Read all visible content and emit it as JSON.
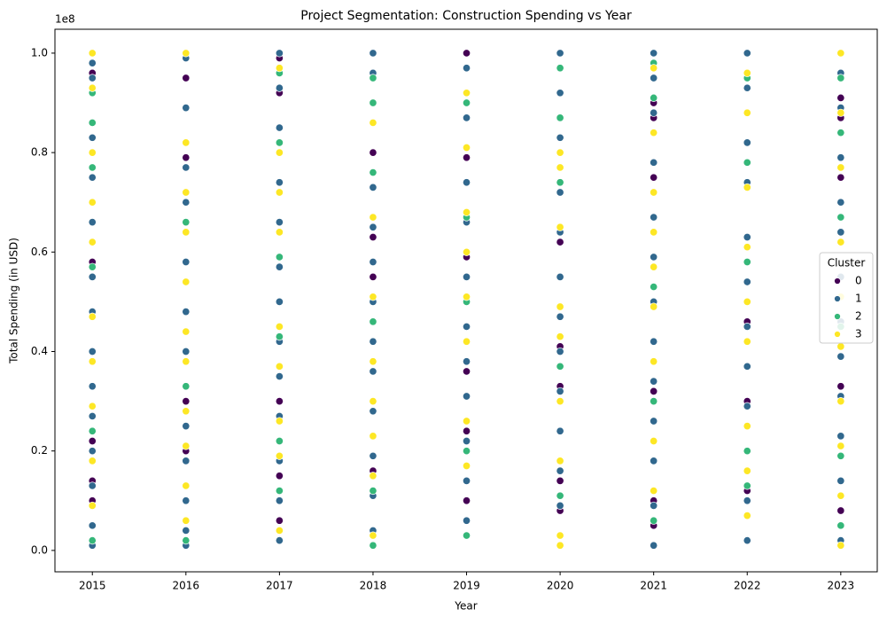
{
  "chart_data": {
    "type": "scatter",
    "title": "Project Segmentation: Construction Spending vs Year",
    "x_label": "Year",
    "y_label": "Total Spending (in USD)",
    "y_offset_label": "1e8",
    "xlim": [
      2014.6,
      2023.39
    ],
    "ylim": [
      -0.043,
      1.048
    ],
    "xticks": [
      2015,
      2016,
      2017,
      2018,
      2019,
      2020,
      2021,
      2022,
      2023
    ],
    "yticks": [
      {
        "value": 0,
        "label": "0.0"
      },
      {
        "value": 0.2,
        "label": "0.2"
      },
      {
        "value": 0.4,
        "label": "0.4"
      },
      {
        "value": 0.6,
        "label": "0.6"
      },
      {
        "value": 0.8,
        "label": "0.8"
      },
      {
        "value": 1,
        "label": "1.0"
      }
    ],
    "grid": false,
    "legend_title": "Cluster",
    "legend_position": "right",
    "series": [
      {
        "name": "0",
        "color": "#440154",
        "x": [
          2015,
          2015,
          2015,
          2015,
          2015,
          2016,
          2016,
          2016,
          2016,
          2016,
          2017,
          2017,
          2017,
          2017,
          2017,
          2018,
          2018,
          2018,
          2018,
          2019,
          2019,
          2019,
          2019,
          2019,
          2019,
          2020,
          2020,
          2020,
          2020,
          2020,
          2021,
          2021,
          2021,
          2021,
          2021,
          2021,
          2022,
          2022,
          2022,
          2022,
          2023,
          2023,
          2023,
          2023,
          2023
        ],
        "values": [
          0.96,
          0.58,
          0.22,
          0.14,
          0.1,
          0.95,
          0.79,
          0.54,
          0.3,
          0.2,
          0.99,
          0.92,
          0.3,
          0.15,
          0.06,
          0.8,
          0.63,
          0.55,
          0.16,
          1.0,
          0.79,
          0.59,
          0.36,
          0.24,
          0.1,
          0.62,
          0.41,
          0.33,
          0.14,
          0.08,
          0.9,
          0.87,
          0.75,
          0.32,
          0.1,
          0.05,
          0.46,
          0.37,
          0.3,
          0.12,
          0.91,
          0.87,
          0.75,
          0.33,
          0.08
        ]
      },
      {
        "name": "1",
        "color": "#31688e",
        "x": [
          2015,
          2015,
          2015,
          2015,
          2015,
          2015,
          2015,
          2015,
          2015,
          2015,
          2015,
          2015,
          2015,
          2015,
          2016,
          2016,
          2016,
          2016,
          2016,
          2016,
          2016,
          2016,
          2016,
          2016,
          2016,
          2016,
          2016,
          2017,
          2017,
          2017,
          2017,
          2017,
          2017,
          2017,
          2017,
          2017,
          2017,
          2017,
          2017,
          2017,
          2018,
          2018,
          2018,
          2018,
          2018,
          2018,
          2018,
          2018,
          2018,
          2018,
          2018,
          2018,
          2018,
          2019,
          2019,
          2019,
          2019,
          2019,
          2019,
          2019,
          2019,
          2019,
          2019,
          2019,
          2020,
          2020,
          2020,
          2020,
          2020,
          2020,
          2020,
          2020,
          2020,
          2020,
          2020,
          2020,
          2021,
          2021,
          2021,
          2021,
          2021,
          2021,
          2021,
          2021,
          2021,
          2021,
          2021,
          2021,
          2021,
          2022,
          2022,
          2022,
          2022,
          2022,
          2022,
          2022,
          2022,
          2022,
          2022,
          2022,
          2022,
          2023,
          2023,
          2023,
          2023,
          2023,
          2023,
          2023,
          2023,
          2023,
          2023,
          2023,
          2023,
          2023
        ],
        "values": [
          0.98,
          0.95,
          0.83,
          0.75,
          0.66,
          0.55,
          0.48,
          0.4,
          0.33,
          0.27,
          0.2,
          0.13,
          0.05,
          0.01,
          0.99,
          0.89,
          0.77,
          0.7,
          0.58,
          0.48,
          0.4,
          0.33,
          0.25,
          0.18,
          0.1,
          0.04,
          0.01,
          1.0,
          0.93,
          0.85,
          0.74,
          0.66,
          0.57,
          0.5,
          0.42,
          0.35,
          0.27,
          0.18,
          0.1,
          0.02,
          1.0,
          0.96,
          0.86,
          0.73,
          0.65,
          0.58,
          0.5,
          0.42,
          0.36,
          0.28,
          0.19,
          0.11,
          0.04,
          0.97,
          0.87,
          0.74,
          0.66,
          0.55,
          0.45,
          0.38,
          0.31,
          0.22,
          0.14,
          0.06,
          1.0,
          0.92,
          0.83,
          0.72,
          0.64,
          0.55,
          0.47,
          0.4,
          0.32,
          0.24,
          0.16,
          0.09,
          1.0,
          0.95,
          0.88,
          0.78,
          0.67,
          0.59,
          0.5,
          0.42,
          0.34,
          0.26,
          0.18,
          0.09,
          0.01,
          1.0,
          0.93,
          0.82,
          0.74,
          0.63,
          0.54,
          0.45,
          0.37,
          0.29,
          0.2,
          0.1,
          0.02,
          0.96,
          0.89,
          0.79,
          0.7,
          0.64,
          0.55,
          0.46,
          0.39,
          0.31,
          0.23,
          0.14,
          0.05,
          0.02
        ]
      },
      {
        "name": "2",
        "color": "#35b779",
        "x": [
          2015,
          2015,
          2015,
          2015,
          2015,
          2015,
          2016,
          2016,
          2016,
          2016,
          2017,
          2017,
          2017,
          2017,
          2017,
          2017,
          2018,
          2018,
          2018,
          2018,
          2018,
          2018,
          2019,
          2019,
          2019,
          2019,
          2019,
          2020,
          2020,
          2020,
          2020,
          2020,
          2021,
          2021,
          2021,
          2021,
          2021,
          2022,
          2022,
          2022,
          2022,
          2022,
          2023,
          2023,
          2023,
          2023,
          2023,
          2023
        ],
        "values": [
          0.92,
          0.86,
          0.77,
          0.57,
          0.24,
          0.02,
          0.66,
          0.33,
          0.13,
          0.02,
          0.96,
          0.82,
          0.59,
          0.43,
          0.22,
          0.12,
          0.95,
          0.9,
          0.76,
          0.46,
          0.12,
          0.01,
          0.9,
          0.67,
          0.5,
          0.2,
          0.03,
          0.97,
          0.87,
          0.74,
          0.37,
          0.11,
          0.98,
          0.91,
          0.53,
          0.3,
          0.06,
          0.95,
          0.78,
          0.58,
          0.2,
          0.13,
          0.95,
          0.84,
          0.67,
          0.45,
          0.19,
          0.05
        ]
      },
      {
        "name": "3",
        "color": "#fde725",
        "x": [
          2015,
          2015,
          2015,
          2015,
          2015,
          2015,
          2015,
          2015,
          2015,
          2015,
          2016,
          2016,
          2016,
          2016,
          2016,
          2016,
          2016,
          2016,
          2016,
          2016,
          2016,
          2017,
          2017,
          2017,
          2017,
          2017,
          2017,
          2017,
          2017,
          2017,
          2018,
          2018,
          2018,
          2018,
          2018,
          2018,
          2018,
          2018,
          2019,
          2019,
          2019,
          2019,
          2019,
          2019,
          2019,
          2019,
          2020,
          2020,
          2020,
          2020,
          2020,
          2020,
          2020,
          2020,
          2020,
          2021,
          2021,
          2021,
          2021,
          2021,
          2021,
          2021,
          2021,
          2021,
          2022,
          2022,
          2022,
          2022,
          2022,
          2022,
          2022,
          2022,
          2022,
          2023,
          2023,
          2023,
          2023,
          2023,
          2023,
          2023,
          2023,
          2023,
          2023
        ],
        "values": [
          1.0,
          0.93,
          0.8,
          0.7,
          0.62,
          0.47,
          0.38,
          0.29,
          0.18,
          0.09,
          1.0,
          0.82,
          0.72,
          0.64,
          0.54,
          0.44,
          0.38,
          0.28,
          0.21,
          0.13,
          0.06,
          0.97,
          0.8,
          0.72,
          0.64,
          0.45,
          0.37,
          0.26,
          0.19,
          0.04,
          0.86,
          0.67,
          0.51,
          0.38,
          0.3,
          0.23,
          0.15,
          0.03,
          0.92,
          0.81,
          0.68,
          0.6,
          0.51,
          0.42,
          0.26,
          0.17,
          0.8,
          0.77,
          0.65,
          0.49,
          0.43,
          0.3,
          0.18,
          0.03,
          0.01,
          0.97,
          0.84,
          0.72,
          0.64,
          0.57,
          0.49,
          0.38,
          0.22,
          0.12,
          0.96,
          0.88,
          0.73,
          0.61,
          0.5,
          0.42,
          0.25,
          0.16,
          0.07,
          1.0,
          0.88,
          0.77,
          0.62,
          0.51,
          0.41,
          0.3,
          0.21,
          0.11,
          0.01
        ]
      }
    ]
  }
}
